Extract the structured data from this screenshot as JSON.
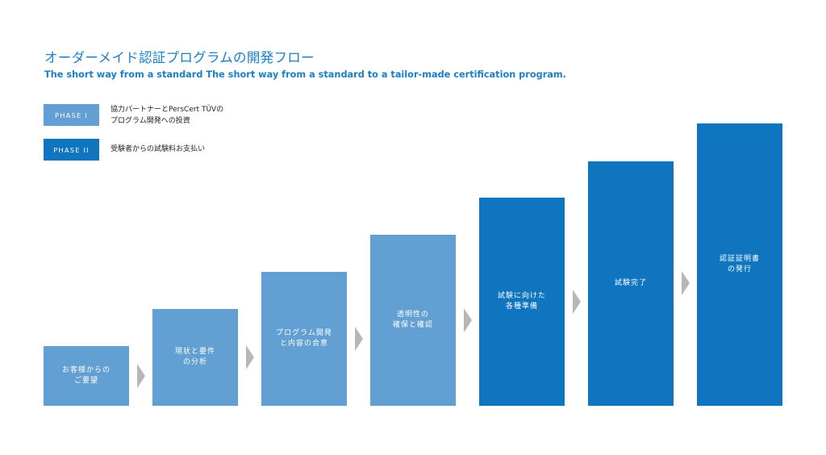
{
  "title": "オーダーメイド認証プログラムの開発フロー",
  "subtitle": "The short way from a standard The short way from a standard to a tailor-made certification program.",
  "colors": {
    "accent": "#1a7fc4",
    "phase1": "#629fd3",
    "phase2": "#0f75bf",
    "arrow": "#b7b7b7"
  },
  "legend": [
    {
      "label": "PHASE I",
      "text": [
        "協力パートナーとPersCert TÜVの",
        "プログラム開発への投資"
      ]
    },
    {
      "label": "PHASE II",
      "text": [
        "受験者からの試験料お支払い"
      ]
    }
  ],
  "steps": [
    {
      "lines": [
        "お客様からの",
        "ご要望"
      ],
      "phase": 1
    },
    {
      "lines": [
        "現状と要件",
        "の分析"
      ],
      "phase": 1
    },
    {
      "lines": [
        "プログラム開発",
        "と内容の合意"
      ],
      "phase": 1
    },
    {
      "lines": [
        "透明性の",
        "確保と確認"
      ],
      "phase": 1
    },
    {
      "lines": [
        "試験に向けた",
        "各種準備"
      ],
      "phase": 2
    },
    {
      "lines": [
        "試験完了"
      ],
      "phase": 2
    },
    {
      "lines": [
        "認証証明書",
        "の発行"
      ],
      "phase": 2
    }
  ],
  "arrow_icon": "chevron-right-icon"
}
